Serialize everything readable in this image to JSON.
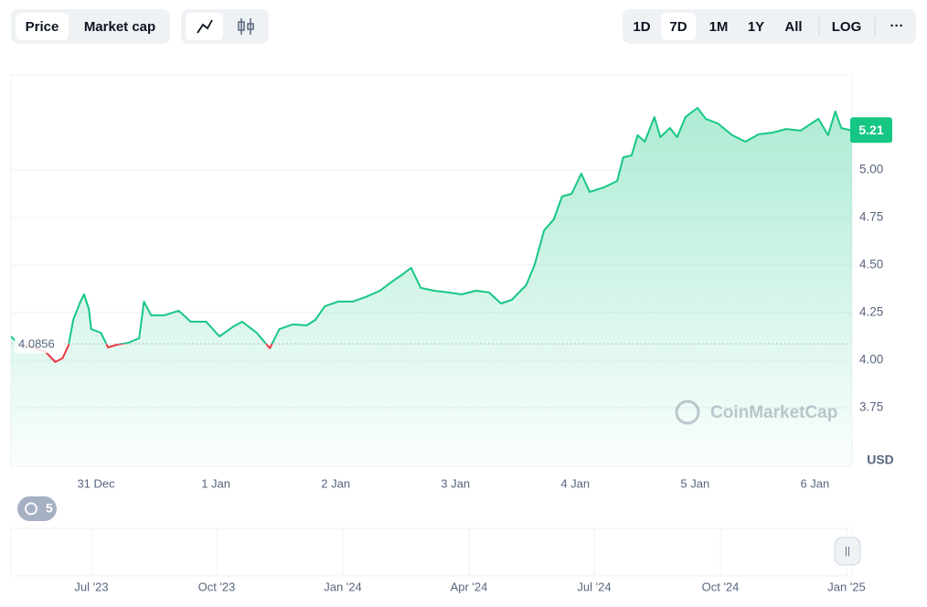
{
  "toolbar": {
    "metric_tabs": [
      "Price",
      "Market cap"
    ],
    "selected_metric": 0,
    "ranges": [
      "1D",
      "7D",
      "1M",
      "1Y",
      "All"
    ],
    "selected_range": 1,
    "scale_toggle": "LOG",
    "more": "···"
  },
  "history_badge": "5",
  "navigator": {
    "labels": [
      "Jul '23",
      "Oct '23",
      "Jan '24",
      "Apr '24",
      "Jul '24",
      "Oct '24",
      "Jan '25"
    ]
  },
  "chart_data": {
    "type": "line",
    "x": [
      -0.71,
      -0.65,
      -0.53,
      -0.42,
      -0.34,
      -0.28,
      -0.23,
      -0.19,
      -0.13,
      -0.1,
      -0.06,
      -0.04,
      0.04,
      0.1,
      0.18,
      0.27,
      0.36,
      0.4,
      0.46,
      0.57,
      0.69,
      0.79,
      0.92,
      1.03,
      1.15,
      1.22,
      1.34,
      1.45,
      1.53,
      1.64,
      1.76,
      1.83,
      1.91,
      2.02,
      2.14,
      2.25,
      2.37,
      2.47,
      2.56,
      2.63,
      2.71,
      2.82,
      2.94,
      3.05,
      3.17,
      3.28,
      3.38,
      3.47,
      3.59,
      3.66,
      3.74,
      3.82,
      3.89,
      3.97,
      4.05,
      4.12,
      4.24,
      4.35,
      4.4,
      4.47,
      4.52,
      4.58,
      4.66,
      4.71,
      4.79,
      4.85,
      4.92,
      5.02,
      5.09,
      5.19,
      5.31,
      5.42,
      5.53,
      5.65,
      5.76,
      5.88,
      6.03,
      6.11,
      6.17,
      6.22,
      6.31
    ],
    "series": [
      {
        "color": "#16c784",
        "values": [
          4.125,
          4.087,
          4.067,
          4.043,
          3.99,
          4.01,
          4.077,
          4.212,
          4.308,
          4.346,
          4.269,
          4.163,
          4.144,
          4.067,
          4.082,
          4.091,
          4.115,
          4.308,
          4.236,
          4.236,
          4.26,
          4.202,
          4.202,
          4.125,
          4.178,
          4.202,
          4.144,
          4.063,
          4.163,
          4.188,
          4.183,
          4.212,
          4.284,
          4.308,
          4.308,
          4.332,
          4.365,
          4.413,
          4.452,
          4.486,
          4.38,
          4.365,
          4.356,
          4.346,
          4.365,
          4.356,
          4.298,
          4.317,
          4.394,
          4.5,
          4.683,
          4.74,
          4.861,
          4.875,
          4.981,
          4.885,
          4.909,
          4.942,
          5.067,
          5.077,
          5.183,
          5.149,
          5.279,
          5.173,
          5.221,
          5.173,
          5.279,
          5.327,
          5.269,
          5.245,
          5.183,
          5.149,
          5.188,
          5.197,
          5.216,
          5.207,
          5.269,
          5.183,
          5.308,
          5.221,
          5.207
        ]
      }
    ],
    "down_color": "#ea3943",
    "reference_value": 4.0856,
    "current_price": 5.21,
    "xlim": [
      -0.71,
      6.31
    ],
    "xticks": [
      {
        "value": 0,
        "label": "31 Dec"
      },
      {
        "value": 1,
        "label": "1 Jan"
      },
      {
        "value": 2,
        "label": "2 Jan"
      },
      {
        "value": 3,
        "label": "3 Jan"
      },
      {
        "value": 4,
        "label": "4 Jan"
      },
      {
        "value": 5,
        "label": "5 Jan"
      },
      {
        "value": 6,
        "label": "6 Jan"
      }
    ],
    "ylim": [
      3.442,
      5.5
    ],
    "yticks": [
      3.75,
      {
        "value": 4,
        "label": "4.00"
      },
      4.25,
      {
        "value": 4.5,
        "label": "4.50"
      },
      4.75,
      {
        "value": 5,
        "label": "5.00"
      }
    ],
    "unit": "USD",
    "watermark": "CoinMarketCap",
    "grid": true
  }
}
